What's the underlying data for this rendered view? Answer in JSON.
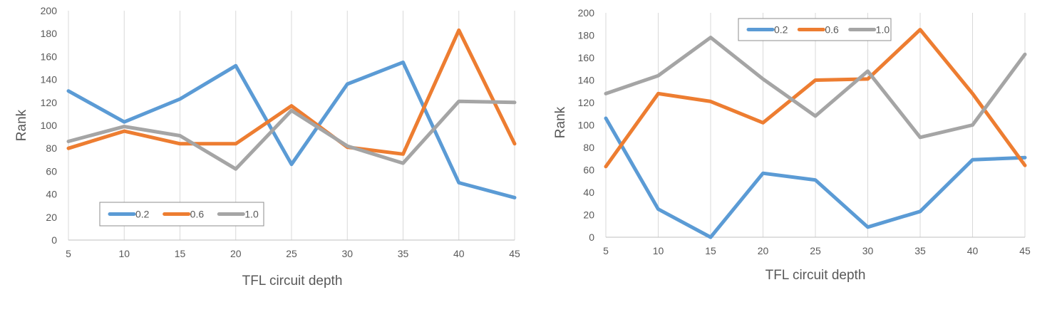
{
  "chart_data": [
    {
      "type": "line",
      "xlabel": "TFL circuit depth",
      "ylabel": "Rank",
      "x": [
        5,
        10,
        15,
        20,
        25,
        30,
        35,
        40,
        45
      ],
      "ylim": [
        0,
        200
      ],
      "yticks": [
        0,
        20,
        40,
        60,
        80,
        100,
        120,
        140,
        160,
        180,
        200
      ],
      "grid": "vertical",
      "legend_position": "bottom-left",
      "series": [
        {
          "name": "0.2",
          "color": "#5B9BD5",
          "values": [
            130,
            103,
            123,
            152,
            66,
            136,
            155,
            50,
            37
          ]
        },
        {
          "name": "0.6",
          "color": "#ED7D31",
          "values": [
            80,
            95,
            84,
            84,
            117,
            81,
            75,
            183,
            84
          ]
        },
        {
          "name": "1.0",
          "color": "#A5A5A5",
          "values": [
            86,
            99,
            91,
            62,
            113,
            82,
            67,
            121,
            120
          ]
        }
      ]
    },
    {
      "type": "line",
      "xlabel": "TFL circuit depth",
      "ylabel": "Rank",
      "x": [
        5,
        10,
        15,
        20,
        25,
        30,
        35,
        40,
        45
      ],
      "ylim": [
        0,
        200
      ],
      "yticks": [
        0,
        20,
        40,
        60,
        80,
        100,
        120,
        140,
        160,
        180,
        200
      ],
      "grid": "vertical",
      "legend_position": "top-left",
      "series": [
        {
          "name": "0.2",
          "color": "#5B9BD5",
          "values": [
            106,
            25,
            0,
            57,
            51,
            9,
            23,
            69,
            71
          ]
        },
        {
          "name": "0.6",
          "color": "#ED7D31",
          "values": [
            63,
            128,
            121,
            102,
            140,
            141,
            185,
            128,
            64
          ]
        },
        {
          "name": "1.0",
          "color": "#A5A5A5",
          "values": [
            128,
            144,
            178,
            141,
            108,
            148,
            89,
            100,
            163
          ]
        }
      ]
    }
  ]
}
